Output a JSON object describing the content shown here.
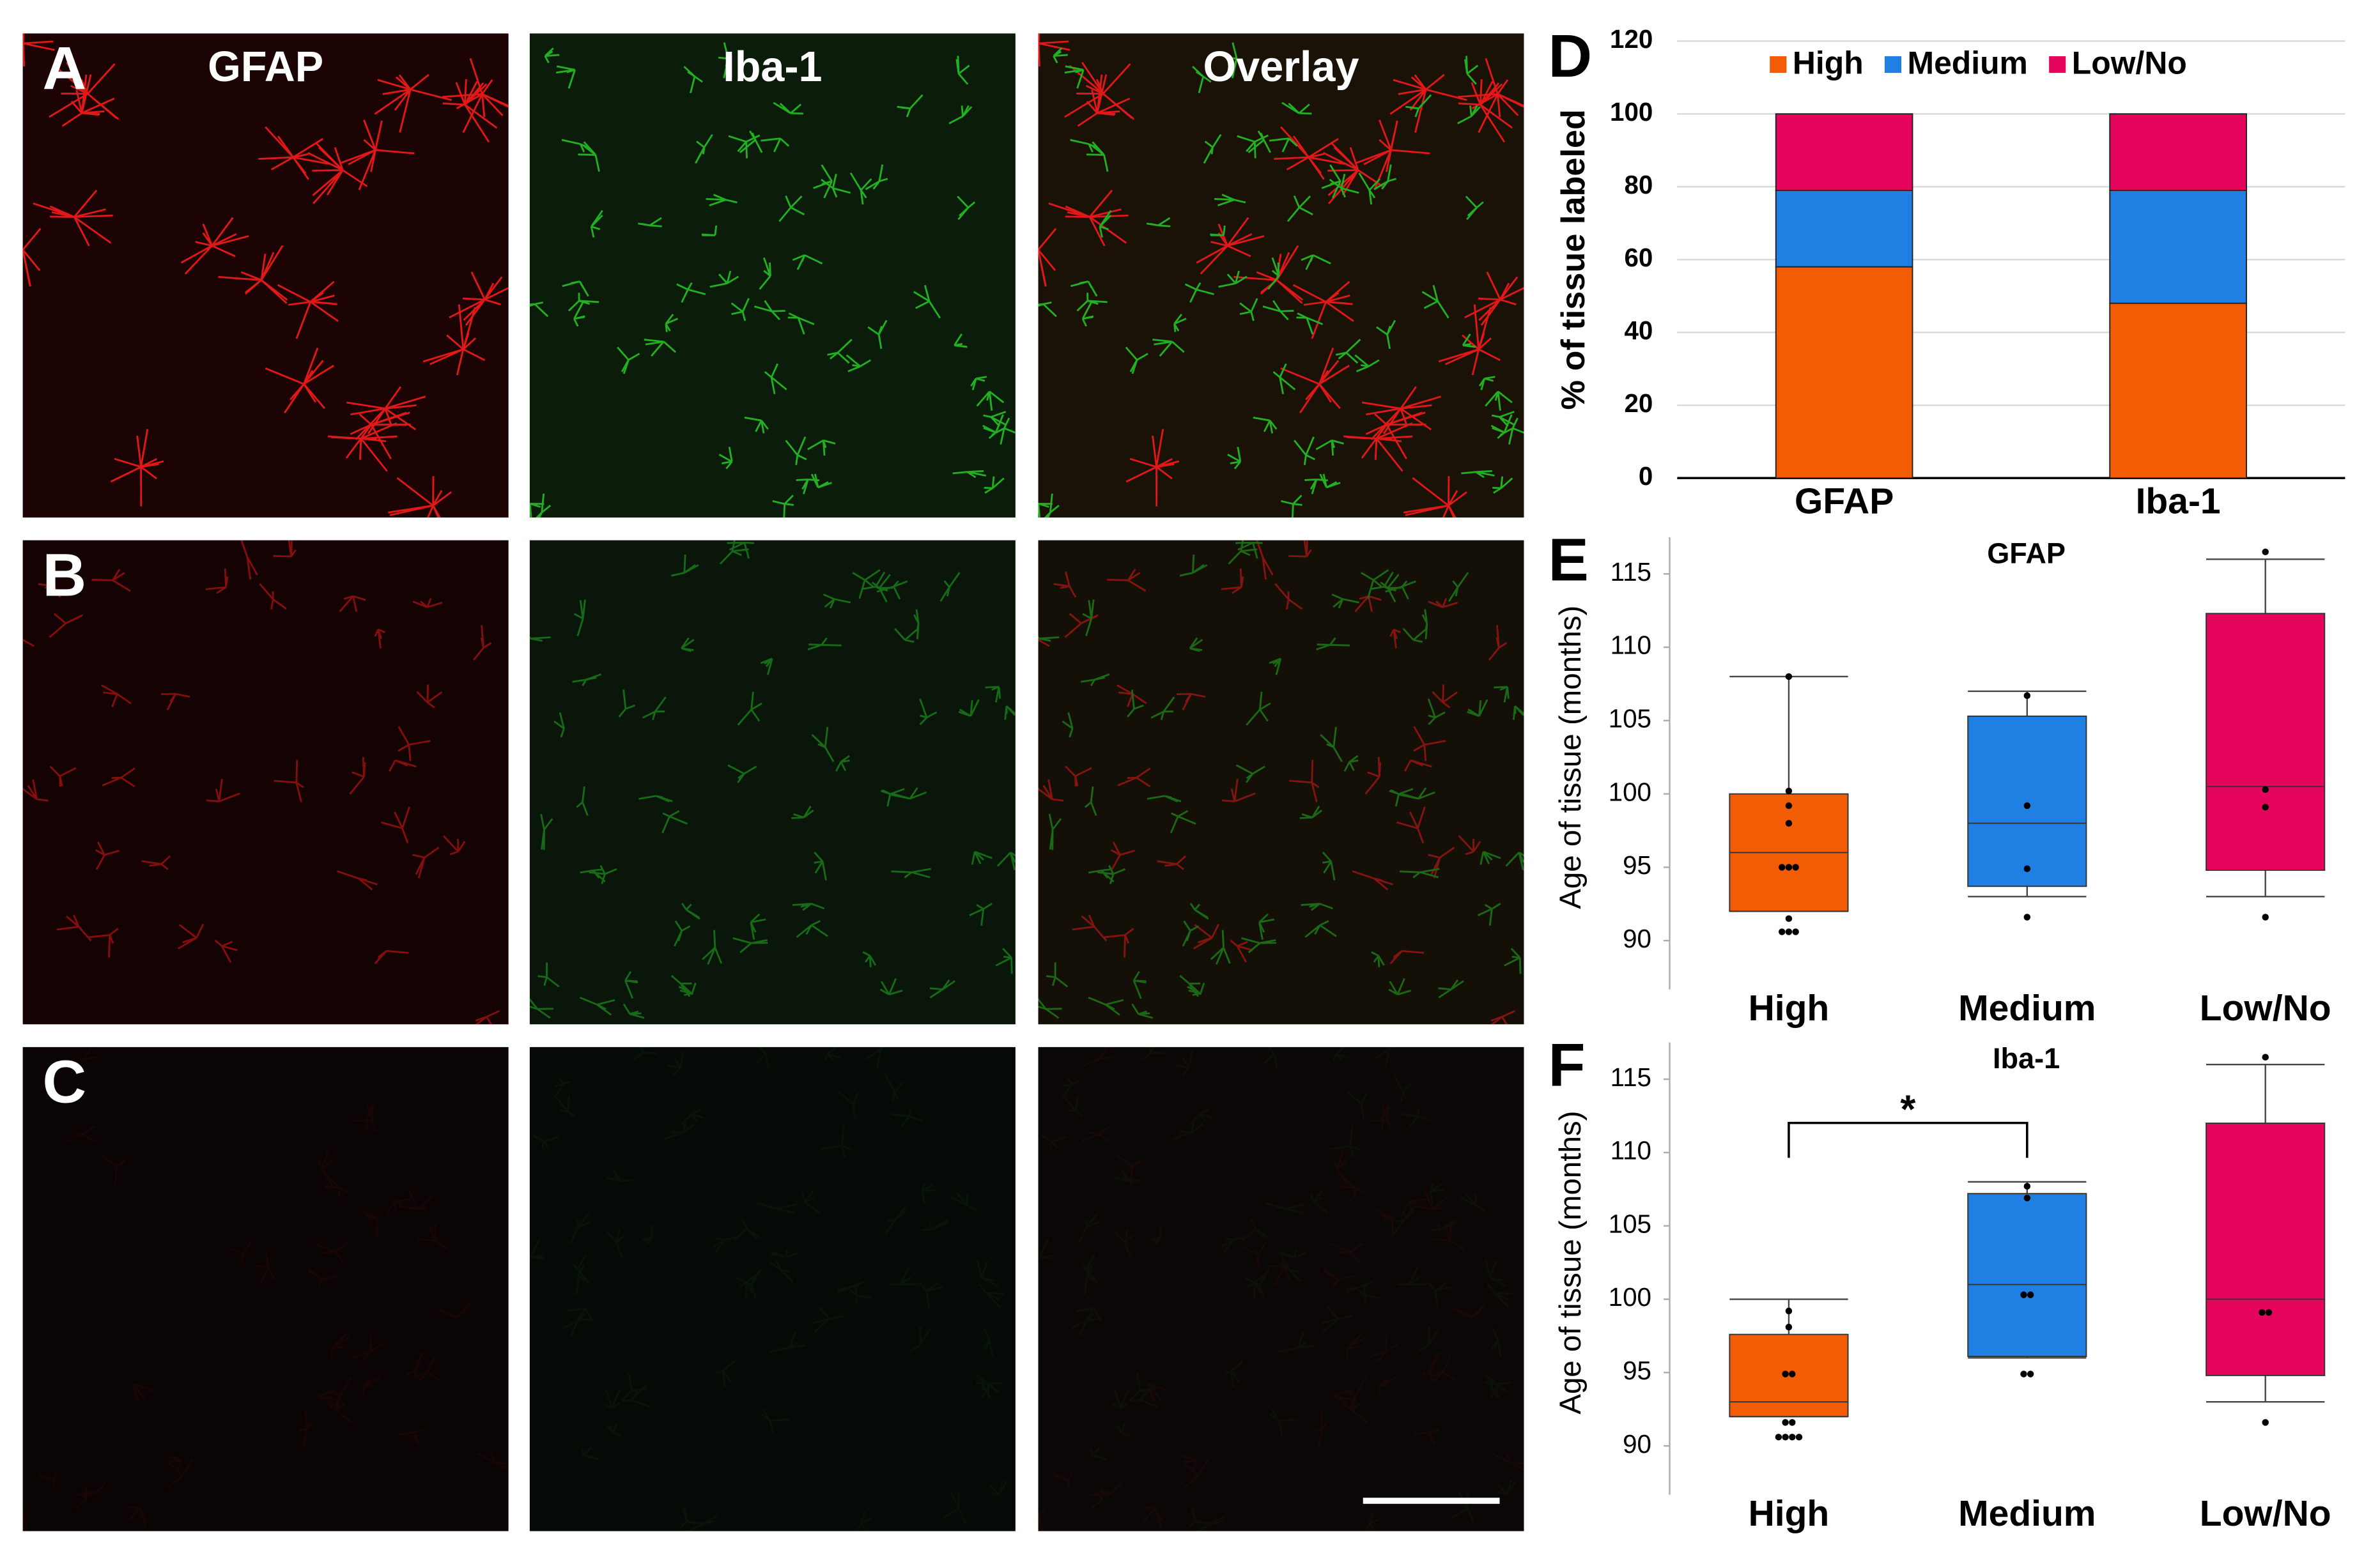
{
  "micrographs": {
    "columns": [
      "GFAP",
      "Iba-1",
      "Overlay"
    ],
    "rows": [
      "A",
      "B",
      "C"
    ]
  },
  "chart_data": [
    {
      "type": "stacked_bar",
      "panel": "D",
      "y_label": "% of tissue labeled",
      "categories": [
        "GFAP",
        "Iba-1"
      ],
      "series": [
        {
          "name": "High",
          "color": "#f25c05",
          "values": [
            58,
            48
          ]
        },
        {
          "name": "Medium",
          "color": "#1f7fe3",
          "values": [
            21,
            31
          ]
        },
        {
          "name": "Low/No",
          "color": "#e6055c",
          "values": [
            21,
            21
          ]
        }
      ],
      "ylim": [
        0,
        120
      ],
      "yticks": [
        0,
        20,
        40,
        60,
        80,
        100,
        120
      ],
      "grid": true,
      "legend": "top"
    },
    {
      "type": "box",
      "panel": "E",
      "title": "GFAP",
      "y_label": "Age of tissue (months)",
      "categories": [
        "High",
        "Medium",
        "Low/No"
      ],
      "colors": [
        "#f25c05",
        "#1f7fe3",
        "#e6055c"
      ],
      "boxes": [
        {
          "min": 92,
          "q1": 92,
          "median": 96,
          "q3": 100,
          "max": 108,
          "points": [
            108,
            100.2,
            99.2,
            98,
            95,
            95,
            95,
            91.5,
            90.6,
            90.6,
            90.6
          ]
        },
        {
          "min": 93,
          "q1": 93.7,
          "median": 98,
          "q3": 105.3,
          "max": 107,
          "points": [
            106.7,
            99.2,
            94.9,
            91.6
          ]
        },
        {
          "min": 93,
          "q1": 94.8,
          "median": 100.5,
          "q3": 112.3,
          "max": 116,
          "points": [
            116.5,
            100.3,
            99.1,
            91.6
          ]
        }
      ],
      "ylim": [
        87.5,
        117.5
      ],
      "yticks": [
        90,
        95,
        100,
        105,
        110,
        115
      ]
    },
    {
      "type": "box",
      "panel": "F",
      "title": "Iba-1",
      "y_label": "Age of tissue (months)",
      "annotation": "*",
      "categories": [
        "High",
        "Medium",
        "Low/No"
      ],
      "colors": [
        "#f25c05",
        "#1f7fe3",
        "#e6055c"
      ],
      "boxes": [
        {
          "min": 92,
          "q1": 92,
          "median": 93,
          "q3": 97.6,
          "max": 100,
          "points": [
            99.2,
            98.1,
            94.9,
            94.9,
            91.6,
            91.6,
            90.6,
            90.6,
            90.6,
            90.6
          ]
        },
        {
          "min": 96,
          "q1": 96.1,
          "median": 101,
          "q3": 107.2,
          "max": 108,
          "points": [
            107.7,
            106.9,
            100.3,
            100.3,
            94.9,
            94.9
          ]
        },
        {
          "min": 93,
          "q1": 94.8,
          "median": 100,
          "q3": 112,
          "max": 116,
          "points": [
            116.5,
            99.1,
            99.1,
            91.6
          ]
        }
      ],
      "ylim": [
        87.5,
        117.5
      ],
      "yticks": [
        90,
        95,
        100,
        105,
        110,
        115
      ]
    }
  ]
}
